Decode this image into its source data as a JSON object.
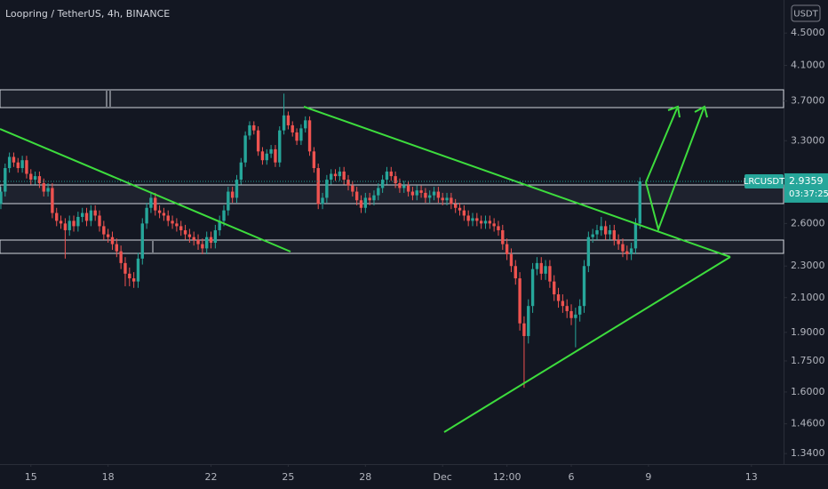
{
  "chart_data": {
    "type": "candlestick",
    "title": "Loopring / TetherUS, 4h, BINANCE",
    "currency": "USDT",
    "symbol": "LRCUSDT",
    "countdown": "03:37:25",
    "up_color": "#26a69a",
    "down_color": "#ef5350",
    "log_scale": true,
    "grid": false,
    "xlim": [
      -0.2,
      182.5
    ],
    "xticks": [
      {
        "value": 7,
        "label": "15"
      },
      {
        "value": 25,
        "label": "18"
      },
      {
        "value": 49,
        "label": "22"
      },
      {
        "value": 67,
        "label": "25"
      },
      {
        "value": 85,
        "label": "28"
      },
      {
        "value": 103,
        "label": "Dec"
      },
      {
        "value": 118,
        "label": "12:00"
      },
      {
        "value": 133,
        "label": "6"
      },
      {
        "value": 151,
        "label": "9"
      },
      {
        "value": 175,
        "label": "13"
      }
    ],
    "ylim": [
      1.3,
      4.95
    ],
    "yticks": [
      {
        "value": 1.34,
        "label": "1.3400"
      },
      {
        "value": 1.46,
        "label": "1.4600"
      },
      {
        "value": 1.6,
        "label": "1.6000"
      },
      {
        "value": 1.75,
        "label": "1.7500"
      },
      {
        "value": 1.9,
        "label": "1.9000"
      },
      {
        "value": 2.1,
        "label": "2.1000"
      },
      {
        "value": 2.3,
        "label": "2.3000"
      },
      {
        "value": 2.6,
        "label": "2.6000"
      },
      {
        "value": 3.3,
        "label": "3.3000"
      },
      {
        "value": 3.7,
        "label": "3.7000"
      },
      {
        "value": 4.1,
        "label": "4.1000"
      },
      {
        "value": 4.5,
        "label": "4.5000"
      }
    ],
    "open": [
      2.75,
      2.85,
      3.05,
      3.15,
      3.1,
      3.05,
      3.12,
      3.0,
      2.95,
      2.98,
      2.92,
      2.85,
      2.88,
      2.68,
      2.62,
      2.6,
      2.55,
      2.62,
      2.58,
      2.65,
      2.68,
      2.62,
      2.7,
      2.66,
      2.58,
      2.52,
      2.5,
      2.45,
      2.4,
      2.32,
      2.25,
      2.22,
      2.2,
      2.35,
      2.6,
      2.72,
      2.8,
      2.7,
      2.68,
      2.66,
      2.62,
      2.6,
      2.58,
      2.55,
      2.52,
      2.5,
      2.48,
      2.45,
      2.42,
      2.5,
      2.46,
      2.55,
      2.62,
      2.7,
      2.85,
      2.8,
      2.95,
      3.1,
      3.35,
      3.45,
      3.4,
      3.2,
      3.12,
      3.18,
      3.22,
      3.1,
      3.4,
      3.55,
      3.45,
      3.38,
      3.3,
      3.42,
      3.5,
      3.2,
      3.05,
      2.75,
      2.8,
      2.95,
      3.0,
      2.98,
      3.02,
      2.95,
      2.9,
      2.85,
      2.78,
      2.72,
      2.8,
      2.78,
      2.82,
      2.88,
      2.95,
      3.02,
      2.98,
      2.92,
      2.88,
      2.9,
      2.85,
      2.82,
      2.86,
      2.84,
      2.8,
      2.82,
      2.85,
      2.8,
      2.78,
      2.8,
      2.75,
      2.72,
      2.7,
      2.66,
      2.62,
      2.64,
      2.62,
      2.6,
      2.62,
      2.6,
      2.58,
      2.55,
      2.45,
      2.38,
      2.3,
      2.22,
      1.95,
      1.88,
      2.05,
      2.28,
      2.32,
      2.25,
      2.3,
      2.2,
      2.12,
      2.08,
      2.05,
      2.02,
      1.98,
      2.0,
      2.05,
      2.3,
      2.5,
      2.52,
      2.55,
      2.58,
      2.52,
      2.55,
      2.48,
      2.45,
      2.4,
      2.38,
      2.42,
      2.6
    ],
    "high": [
      2.89,
      3.09,
      3.19,
      3.19,
      3.14,
      3.16,
      3.16,
      3.04,
      3.02,
      3.02,
      2.96,
      2.92,
      2.92,
      2.72,
      2.66,
      2.64,
      2.66,
      2.66,
      2.69,
      2.72,
      2.72,
      2.74,
      2.74,
      2.7,
      2.62,
      2.56,
      2.54,
      2.49,
      2.44,
      2.36,
      2.29,
      2.26,
      2.39,
      2.64,
      2.76,
      2.84,
      2.84,
      2.74,
      2.72,
      2.7,
      2.66,
      2.64,
      2.62,
      2.59,
      2.56,
      2.54,
      2.52,
      2.49,
      2.54,
      2.54,
      2.59,
      2.66,
      2.74,
      2.89,
      2.89,
      2.99,
      3.14,
      3.39,
      3.49,
      3.49,
      3.44,
      3.24,
      3.22,
      3.26,
      3.26,
      3.44,
      3.78,
      3.59,
      3.49,
      3.42,
      3.46,
      3.54,
      3.54,
      3.24,
      3.09,
      2.84,
      2.99,
      3.04,
      3.04,
      3.06,
      3.06,
      2.99,
      2.94,
      2.89,
      2.82,
      2.84,
      2.84,
      2.86,
      2.92,
      2.99,
      3.06,
      3.06,
      3.02,
      2.96,
      2.94,
      2.94,
      2.89,
      2.9,
      2.9,
      2.88,
      2.86,
      2.89,
      2.89,
      2.84,
      2.84,
      2.84,
      2.79,
      2.76,
      2.74,
      2.7,
      2.68,
      2.68,
      2.66,
      2.66,
      2.66,
      2.64,
      2.62,
      2.59,
      2.49,
      2.42,
      2.34,
      2.26,
      1.99,
      2.09,
      2.32,
      2.36,
      2.36,
      2.34,
      2.34,
      2.24,
      2.16,
      2.12,
      2.09,
      2.06,
      2.04,
      2.09,
      2.34,
      2.54,
      2.56,
      2.59,
      2.65,
      2.62,
      2.59,
      2.59,
      2.52,
      2.49,
      2.44,
      2.46,
      2.64,
      2.97
    ],
    "low": [
      2.71,
      2.81,
      3.01,
      3.06,
      3.01,
      3.01,
      2.96,
      2.91,
      2.91,
      2.88,
      2.81,
      2.81,
      2.64,
      2.58,
      2.56,
      2.35,
      2.51,
      2.54,
      2.54,
      2.61,
      2.58,
      2.58,
      2.62,
      2.54,
      2.48,
      2.46,
      2.41,
      2.36,
      2.28,
      2.17,
      2.17,
      2.16,
      2.16,
      2.31,
      2.56,
      2.68,
      2.66,
      2.64,
      2.62,
      2.58,
      2.56,
      2.54,
      2.51,
      2.48,
      2.46,
      2.44,
      2.41,
      2.38,
      2.38,
      2.42,
      2.42,
      2.51,
      2.58,
      2.66,
      2.76,
      2.76,
      2.91,
      3.06,
      3.31,
      3.36,
      3.16,
      3.08,
      3.08,
      3.14,
      3.06,
      3.06,
      3.36,
      3.41,
      3.34,
      3.26,
      3.26,
      3.38,
      3.16,
      3.01,
      2.71,
      2.71,
      2.76,
      2.91,
      2.94,
      2.94,
      2.91,
      2.86,
      2.81,
      2.74,
      2.68,
      2.68,
      2.74,
      2.74,
      2.78,
      2.84,
      2.91,
      2.94,
      2.88,
      2.84,
      2.84,
      2.81,
      2.78,
      2.78,
      2.8,
      2.76,
      2.76,
      2.78,
      2.76,
      2.74,
      2.74,
      2.71,
      2.68,
      2.66,
      2.62,
      2.58,
      2.58,
      2.58,
      2.56,
      2.56,
      2.56,
      2.54,
      2.51,
      2.41,
      2.34,
      2.26,
      2.18,
      1.91,
      1.62,
      1.84,
      2.01,
      2.24,
      2.21,
      2.21,
      2.16,
      2.08,
      2.04,
      2.01,
      1.98,
      1.94,
      1.82,
      1.96,
      2.01,
      2.26,
      2.46,
      2.48,
      2.51,
      2.48,
      2.48,
      2.44,
      2.41,
      2.36,
      2.34,
      2.34,
      2.38,
      2.56
    ],
    "close": [
      2.85,
      3.05,
      3.15,
      3.1,
      3.05,
      3.12,
      3.0,
      2.95,
      2.98,
      2.92,
      2.85,
      2.88,
      2.68,
      2.62,
      2.6,
      2.55,
      2.62,
      2.58,
      2.65,
      2.68,
      2.62,
      2.7,
      2.66,
      2.58,
      2.52,
      2.5,
      2.45,
      2.4,
      2.32,
      2.25,
      2.22,
      2.2,
      2.35,
      2.6,
      2.72,
      2.8,
      2.7,
      2.68,
      2.66,
      2.62,
      2.6,
      2.58,
      2.55,
      2.52,
      2.5,
      2.48,
      2.45,
      2.42,
      2.5,
      2.46,
      2.55,
      2.62,
      2.7,
      2.85,
      2.8,
      2.95,
      3.1,
      3.35,
      3.45,
      3.4,
      3.2,
      3.12,
      3.18,
      3.22,
      3.1,
      3.4,
      3.55,
      3.45,
      3.38,
      3.3,
      3.42,
      3.5,
      3.2,
      3.05,
      2.75,
      2.8,
      2.95,
      3.0,
      2.98,
      3.02,
      2.95,
      2.9,
      2.85,
      2.78,
      2.72,
      2.8,
      2.78,
      2.82,
      2.88,
      2.95,
      3.02,
      2.98,
      2.92,
      2.88,
      2.9,
      2.85,
      2.82,
      2.86,
      2.84,
      2.8,
      2.82,
      2.85,
      2.8,
      2.78,
      2.8,
      2.75,
      2.72,
      2.7,
      2.66,
      2.62,
      2.64,
      2.62,
      2.6,
      2.62,
      2.6,
      2.58,
      2.55,
      2.45,
      2.38,
      2.3,
      2.22,
      1.95,
      1.88,
      2.05,
      2.28,
      2.32,
      2.25,
      2.3,
      2.2,
      2.12,
      2.08,
      2.05,
      2.02,
      1.98,
      2.0,
      2.05,
      2.3,
      2.5,
      2.52,
      2.55,
      2.58,
      2.52,
      2.55,
      2.48,
      2.45,
      2.4,
      2.38,
      2.42,
      2.6,
      2.9359
    ]
  }
}
